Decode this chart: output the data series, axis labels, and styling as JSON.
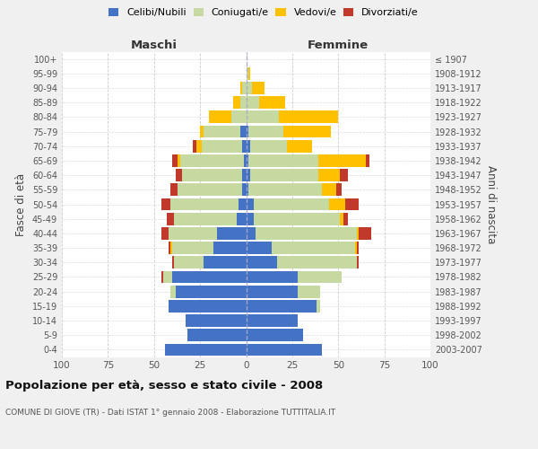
{
  "age_groups": [
    "0-4",
    "5-9",
    "10-14",
    "15-19",
    "20-24",
    "25-29",
    "30-34",
    "35-39",
    "40-44",
    "45-49",
    "50-54",
    "55-59",
    "60-64",
    "65-69",
    "70-74",
    "75-79",
    "80-84",
    "85-89",
    "90-94",
    "95-99",
    "100+"
  ],
  "birth_years": [
    "2003-2007",
    "1998-2002",
    "1993-1997",
    "1988-1992",
    "1983-1987",
    "1978-1982",
    "1973-1977",
    "1968-1972",
    "1963-1967",
    "1958-1962",
    "1953-1957",
    "1948-1952",
    "1943-1947",
    "1938-1942",
    "1933-1937",
    "1928-1932",
    "1923-1927",
    "1918-1922",
    "1913-1917",
    "1908-1912",
    "≤ 1907"
  ],
  "male": {
    "celibi": [
      44,
      32,
      33,
      42,
      38,
      40,
      23,
      18,
      16,
      5,
      4,
      2,
      2,
      1,
      2,
      3,
      0,
      0,
      0,
      0,
      0
    ],
    "coniugati": [
      0,
      0,
      0,
      0,
      3,
      5,
      16,
      22,
      26,
      34,
      37,
      35,
      33,
      35,
      22,
      20,
      8,
      3,
      2,
      0,
      0
    ],
    "vedovi": [
      0,
      0,
      0,
      0,
      0,
      0,
      0,
      1,
      0,
      0,
      0,
      0,
      0,
      1,
      3,
      2,
      12,
      4,
      1,
      0,
      0
    ],
    "divorziati": [
      0,
      0,
      0,
      0,
      0,
      1,
      1,
      1,
      4,
      4,
      5,
      4,
      3,
      3,
      2,
      0,
      0,
      0,
      0,
      0,
      0
    ]
  },
  "female": {
    "nubili": [
      41,
      31,
      28,
      38,
      28,
      28,
      17,
      14,
      5,
      4,
      4,
      1,
      2,
      1,
      2,
      1,
      0,
      0,
      0,
      0,
      0
    ],
    "coniugate": [
      0,
      0,
      0,
      2,
      12,
      24,
      43,
      45,
      55,
      47,
      41,
      40,
      37,
      38,
      20,
      19,
      18,
      7,
      3,
      1,
      0
    ],
    "vedove": [
      0,
      0,
      0,
      0,
      0,
      0,
      0,
      1,
      1,
      2,
      9,
      8,
      12,
      26,
      14,
      26,
      32,
      14,
      7,
      1,
      0
    ],
    "divorziate": [
      0,
      0,
      0,
      0,
      0,
      0,
      1,
      1,
      7,
      2,
      7,
      3,
      4,
      2,
      0,
      0,
      0,
      0,
      0,
      0,
      0
    ]
  },
  "colors": {
    "celibi_nubili": "#4472c4",
    "coniugati": "#c5d9a0",
    "vedovi": "#ffc000",
    "divorziati": "#c0392b"
  },
  "xlim": 100,
  "title": "Popolazione per età, sesso e stato civile - 2008",
  "subtitle": "COMUNE DI GIOVE (TR) - Dati ISTAT 1° gennaio 2008 - Elaborazione TUTTITALIA.IT",
  "ylabel": "Fasce di età",
  "ylabel_right": "Anni di nascita",
  "xlabel_maschi": "Maschi",
  "xlabel_femmine": "Femmine",
  "bg_color": "#f0f0f0",
  "plot_bg": "#ffffff"
}
